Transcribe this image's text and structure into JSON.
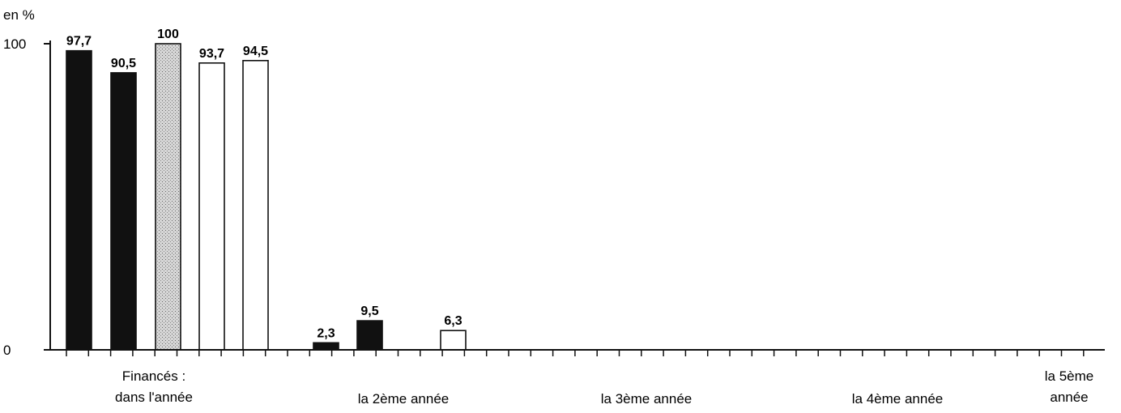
{
  "chart_data": {
    "type": "bar",
    "ylabel": "en %",
    "ylim": [
      0,
      100
    ],
    "yticks": [
      "0",
      "100"
    ],
    "grid": false,
    "legend": "none",
    "categories": [
      [
        "Financés :",
        "dans l'année"
      ],
      [
        "la 2ème année"
      ],
      [
        "la 3ème année"
      ],
      [
        "la 4ème année"
      ],
      [
        "la 5ème",
        "année"
      ]
    ],
    "bars": [
      {
        "category_index": 0,
        "value": 97.7,
        "label": "97,7",
        "style": "black"
      },
      {
        "category_index": 0,
        "value": 90.5,
        "label": "90,5",
        "style": "black"
      },
      {
        "category_index": 0,
        "value": 100,
        "label": "100",
        "style": "hatched"
      },
      {
        "category_index": 0,
        "value": 93.7,
        "label": "93,7",
        "style": "white"
      },
      {
        "category_index": 0,
        "value": 94.5,
        "label": "94,5",
        "style": "white"
      },
      {
        "category_index": 1,
        "value": 2.3,
        "label": "2,3",
        "style": "black"
      },
      {
        "category_index": 1,
        "value": 9.5,
        "label": "9,5",
        "style": "black"
      },
      {
        "category_index": 1,
        "value": 6.3,
        "label": "6,3",
        "style": "white"
      }
    ],
    "colors": {
      "black": "#111111",
      "white": "#ffffff",
      "hatched": "#c9c9c9",
      "stroke": "#111111"
    }
  }
}
